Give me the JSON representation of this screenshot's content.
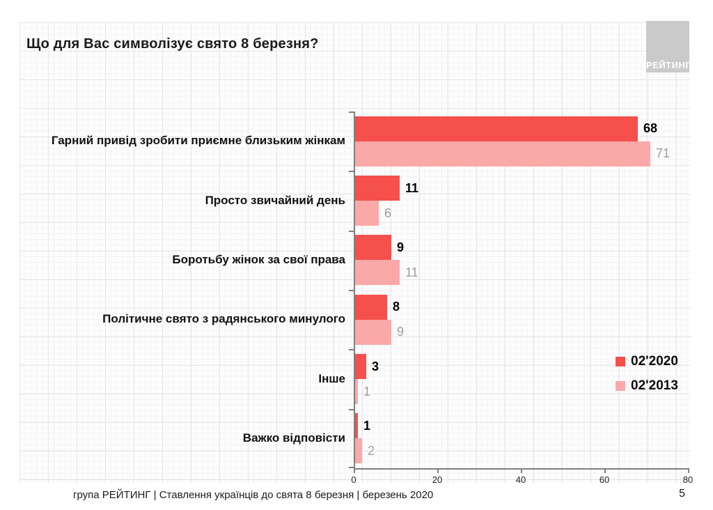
{
  "title": "Що для Вас символізує свято 8 березня?",
  "logo": {
    "text": "РЕЙТИНГ",
    "background": "#cacaca"
  },
  "chart_data": {
    "type": "bar",
    "orientation": "horizontal",
    "title": "Що для Вас символізує свято 8 березня?",
    "categories": [
      "Гарний привід зробити приємне близьким жінкам",
      "Просто звичайний день",
      "Боротьбу жінок за свої права",
      "Політичне свято з радянського минулого",
      "Інше",
      "Важко відповісти"
    ],
    "series": [
      {
        "name": "02'2020",
        "color": "#f6504c",
        "values": [
          68,
          11,
          9,
          8,
          3,
          1
        ]
      },
      {
        "name": "02'2013",
        "color": "#fba8a8",
        "values": [
          71,
          6,
          11,
          9,
          1,
          2
        ]
      }
    ],
    "xlim": [
      0,
      80
    ],
    "x_ticks": [
      "0",
      "20",
      "40",
      "60",
      "80"
    ],
    "value_labels": true,
    "grid": "faint graph-paper background",
    "legend_position": "middle-right",
    "value_label_colors": {
      "02'2020": "#000000",
      "02'2013": "#9e9e9e"
    }
  },
  "legend": [
    {
      "label": "02'2020",
      "color": "#f6504c"
    },
    {
      "label": "02'2013",
      "color": "#fba8a8"
    }
  ],
  "footer": {
    "source_line": "група РЕЙТИНГ | Ставлення українців до свята 8 березня  | березень 2020",
    "page_number": "5"
  }
}
